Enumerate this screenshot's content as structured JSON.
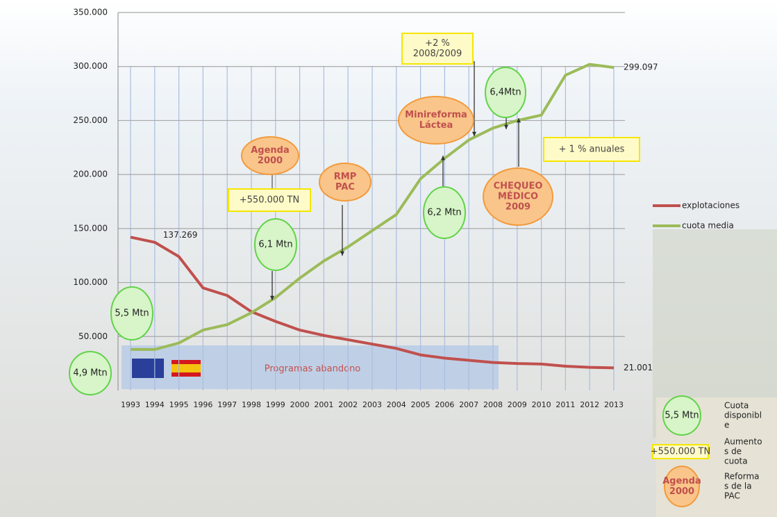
{
  "chart_data": {
    "type": "line",
    "categories": [
      "1993",
      "1994",
      "1995",
      "1996",
      "1997",
      "1998",
      "1999",
      "2000",
      "2001",
      "2002",
      "2003",
      "2004",
      "2005",
      "2006",
      "2007",
      "2008",
      "2009",
      "2010",
      "2011",
      "2012",
      "2013"
    ],
    "series": [
      {
        "name": "explotaciones",
        "color": "#c0504d",
        "values": [
          142000,
          137269,
          124000,
          95000,
          88000,
          73000,
          64000,
          56000,
          51000,
          47000,
          43000,
          39000,
          33000,
          30000,
          28000,
          26000,
          25000,
          24500,
          22500,
          21500,
          21001
        ],
        "value_labels": [
          null,
          "137.269",
          null,
          null,
          null,
          null,
          null,
          null,
          null,
          null,
          null,
          null,
          null,
          null,
          null,
          null,
          null,
          null,
          null,
          null,
          "21.001"
        ]
      },
      {
        "name": "cuota media",
        "color": "#9bbb59",
        "values": [
          38000,
          38000,
          44000,
          56000,
          61000,
          72000,
          86000,
          104000,
          120000,
          133000,
          148000,
          163000,
          196000,
          215000,
          232000,
          243000,
          250000,
          255000,
          292000,
          302000,
          299097
        ],
        "value_labels": [
          null,
          null,
          null,
          null,
          null,
          null,
          null,
          null,
          null,
          null,
          null,
          null,
          null,
          null,
          null,
          null,
          null,
          null,
          null,
          null,
          "299.097"
        ]
      }
    ],
    "ylim": [
      0,
      350000
    ],
    "yticks": [
      {
        "value": 50000,
        "label": "50.000"
      },
      {
        "value": 100000,
        "label": "100.000"
      },
      {
        "value": 150000,
        "label": "150.000"
      },
      {
        "value": 200000,
        "label": "200.000"
      },
      {
        "value": 250000,
        "label": "250.000"
      },
      {
        "value": 300000,
        "label": "300.000"
      },
      {
        "value": 350000,
        "label": "350.000"
      }
    ],
    "grid": true,
    "band_label": "Programas abandono",
    "annotations": [
      {
        "shape": "circle",
        "lines": [
          "5,5 Mtn"
        ]
      },
      {
        "shape": "circle",
        "lines": [
          "4,9 Mtn"
        ]
      },
      {
        "shape": "circle",
        "lines": [
          "6,1 Mtn"
        ]
      },
      {
        "shape": "box",
        "lines": [
          "+550.000 TN"
        ]
      },
      {
        "shape": "oval",
        "lines": [
          "Agenda",
          "2000"
        ]
      },
      {
        "shape": "oval",
        "lines": [
          "RMP",
          "PAC"
        ]
      },
      {
        "shape": "circle",
        "lines": [
          "6,2 Mtn"
        ]
      },
      {
        "shape": "oval",
        "lines": [
          "Minireforma",
          "Láctea"
        ]
      },
      {
        "shape": "box",
        "lines": [
          "+2 %",
          "2008/2009"
        ]
      },
      {
        "shape": "circle",
        "lines": [
          "6,4Mtn"
        ]
      },
      {
        "shape": "oval",
        "lines": [
          "CHEQUEO",
          "MÉDICO",
          "2009"
        ]
      },
      {
        "shape": "box",
        "lines": [
          "+ 1 % anuales"
        ]
      }
    ],
    "key": [
      {
        "shape": "circle",
        "symbol": [
          "5,5 Mtn"
        ],
        "text": [
          "Cuota",
          "disponibl",
          "e"
        ]
      },
      {
        "shape": "box",
        "symbol": [
          "+550.000 TN"
        ],
        "text": [
          "Aumento",
          "s de",
          "cuota"
        ]
      },
      {
        "shape": "oval",
        "symbol": [
          "Agenda",
          "2000"
        ],
        "text": [
          "Reforma",
          "s de la",
          "PAC"
        ]
      }
    ]
  }
}
